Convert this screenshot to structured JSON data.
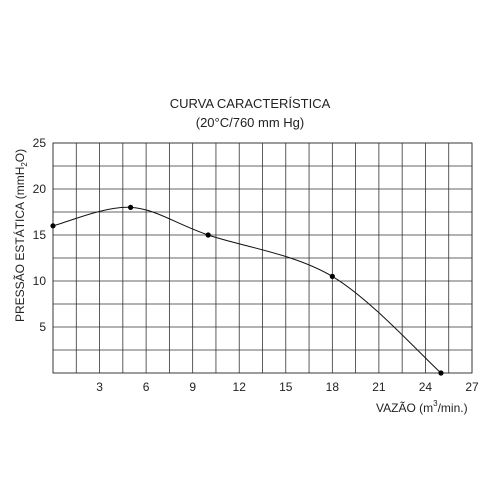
{
  "chart_data": {
    "type": "line",
    "title": "CURVA CARACTERÍSTICA",
    "subtitle": "(20°C/760 mm Hg)",
    "xlabel": "VAZÃO (m³/min.)",
    "xlabel_parts": {
      "prefix": "VAZÃO (m",
      "sup": "3",
      "suffix": "/min.)"
    },
    "ylabel": "PRESSÃO ESTÁTICA (mmH₂O)",
    "ylabel_parts": {
      "prefix": "PRESSÃO ESTÁTICA (mmH",
      "sub": "2",
      "suffix": "O)"
    },
    "xlim": [
      0,
      27
    ],
    "ylim": [
      0,
      25
    ],
    "x_ticks": [
      3,
      6,
      9,
      12,
      15,
      18,
      21,
      24,
      27
    ],
    "x_tick_labels": [
      "3",
      "6",
      "9",
      "12",
      "15",
      "18",
      "21",
      "24",
      "27"
    ],
    "y_ticks": [
      5,
      10,
      15,
      20,
      25
    ],
    "y_tick_labels": [
      "5",
      "10",
      "15",
      "20",
      "25"
    ],
    "grid": true,
    "series": [
      {
        "x": [
          0,
          5,
          10,
          18,
          25
        ],
        "y": [
          16,
          18,
          15,
          10.5,
          0
        ]
      }
    ]
  }
}
